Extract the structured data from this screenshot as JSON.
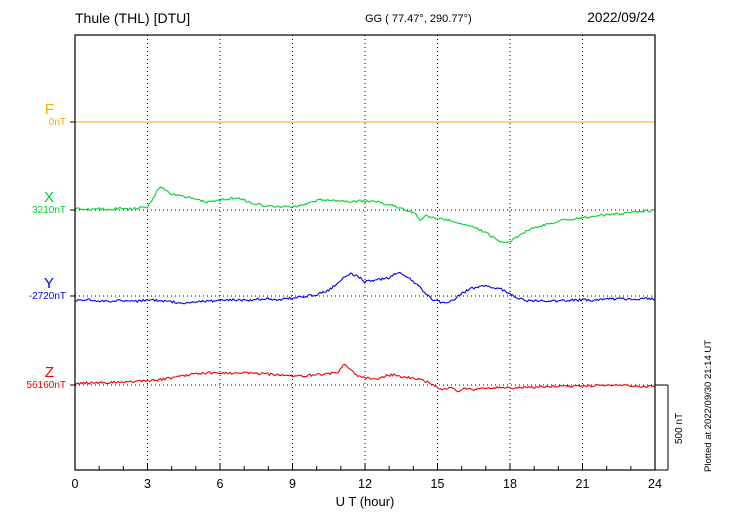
{
  "header": {
    "station_title": "Thule (THL)  [DTU]",
    "coords": "GG ( 77.47°, 290.77°)",
    "date": "2022/09/24"
  },
  "side": {
    "plotted_at": "Plotted at 2022/09/30 21:14 UT",
    "scale_label": "500 nT"
  },
  "chart_data": {
    "type": "line",
    "title": "Thule (THL) [DTU] magnetogram 2022/09/24",
    "xlabel": "U T (hour)",
    "xlim": [
      0,
      24
    ],
    "x_ticks": [
      0,
      3,
      6,
      9,
      12,
      15,
      18,
      21,
      24
    ],
    "grid": "dotted vertical at 3h intervals, dotted horizontal at each component baseline",
    "scale_bar_nT": 500,
    "series": [
      {
        "name": "F",
        "baseline_label": "0nT",
        "baseline_value_nT": 0,
        "color": "#ffa800",
        "points": [
          [
            0,
            0
          ],
          [
            24,
            0
          ]
        ]
      },
      {
        "name": "X",
        "baseline_label": "3210nT",
        "baseline_value_nT": 3210,
        "color": "#00d22d",
        "points": [
          [
            0,
            5
          ],
          [
            0.3,
            8
          ],
          [
            0.6,
            2
          ],
          [
            1,
            6
          ],
          [
            1.4,
            3
          ],
          [
            1.8,
            10
          ],
          [
            2.2,
            6
          ],
          [
            2.6,
            10
          ],
          [
            3,
            18
          ],
          [
            3.2,
            60
          ],
          [
            3.5,
            135
          ],
          [
            3.7,
            120
          ],
          [
            4,
            95
          ],
          [
            4.3,
            85
          ],
          [
            4.7,
            75
          ],
          [
            5,
            60
          ],
          [
            5.4,
            48
          ],
          [
            5.8,
            50
          ],
          [
            6.2,
            62
          ],
          [
            6.6,
            72
          ],
          [
            7,
            58
          ],
          [
            7.4,
            35
          ],
          [
            7.8,
            28
          ],
          [
            8.2,
            24
          ],
          [
            8.6,
            20
          ],
          [
            9,
            16
          ],
          [
            9.4,
            28
          ],
          [
            9.8,
            50
          ],
          [
            10.2,
            58
          ],
          [
            10.6,
            52
          ],
          [
            11,
            55
          ],
          [
            11.4,
            50
          ],
          [
            11.8,
            52
          ],
          [
            12.2,
            48
          ],
          [
            12.6,
            44
          ],
          [
            13,
            32
          ],
          [
            13.4,
            15
          ],
          [
            13.8,
            -5
          ],
          [
            14.1,
            -20
          ],
          [
            14.3,
            -65
          ],
          [
            14.5,
            -35
          ],
          [
            14.8,
            -45
          ],
          [
            15.2,
            -55
          ],
          [
            15.6,
            -65
          ],
          [
            16,
            -85
          ],
          [
            16.4,
            -100
          ],
          [
            16.8,
            -120
          ],
          [
            17.2,
            -150
          ],
          [
            17.6,
            -185
          ],
          [
            17.9,
            -195
          ],
          [
            18.2,
            -165
          ],
          [
            18.6,
            -130
          ],
          [
            19,
            -105
          ],
          [
            19.5,
            -85
          ],
          [
            20,
            -65
          ],
          [
            20.5,
            -55
          ],
          [
            21,
            -45
          ],
          [
            21.5,
            -35
          ],
          [
            22,
            -28
          ],
          [
            22.5,
            -22
          ],
          [
            23,
            -14
          ],
          [
            23.5,
            -8
          ],
          [
            24,
            -2
          ]
        ]
      },
      {
        "name": "Y",
        "baseline_label": "-2720nT",
        "baseline_value_nT": -2720,
        "color": "#0000ee",
        "points": [
          [
            0,
            -28
          ],
          [
            0.5,
            -22
          ],
          [
            1,
            -28
          ],
          [
            1.5,
            -32
          ],
          [
            2,
            -26
          ],
          [
            2.5,
            -32
          ],
          [
            3,
            -24
          ],
          [
            3.5,
            -28
          ],
          [
            4,
            -34
          ],
          [
            4.5,
            -42
          ],
          [
            5,
            -36
          ],
          [
            5.5,
            -30
          ],
          [
            6,
            -26
          ],
          [
            6.5,
            -22
          ],
          [
            7,
            -26
          ],
          [
            7.5,
            -20
          ],
          [
            8,
            -16
          ],
          [
            8.5,
            -22
          ],
          [
            9,
            -12
          ],
          [
            9.5,
            -2
          ],
          [
            10,
            8
          ],
          [
            10.5,
            35
          ],
          [
            10.8,
            70
          ],
          [
            11.1,
            110
          ],
          [
            11.4,
            132
          ],
          [
            11.7,
            118
          ],
          [
            12,
            85
          ],
          [
            12.3,
            92
          ],
          [
            12.6,
            98
          ],
          [
            13,
            108
          ],
          [
            13.3,
            138
          ],
          [
            13.6,
            128
          ],
          [
            13.9,
            95
          ],
          [
            14.2,
            65
          ],
          [
            14.5,
            15
          ],
          [
            14.8,
            -20
          ],
          [
            15.1,
            -35
          ],
          [
            15.4,
            -42
          ],
          [
            15.7,
            -20
          ],
          [
            16,
            15
          ],
          [
            16.4,
            45
          ],
          [
            16.8,
            58
          ],
          [
            17.2,
            52
          ],
          [
            17.6,
            42
          ],
          [
            18,
            12
          ],
          [
            18.4,
            -15
          ],
          [
            18.8,
            -28
          ],
          [
            19.2,
            -32
          ],
          [
            19.6,
            -26
          ],
          [
            20,
            -30
          ],
          [
            20.5,
            -26
          ],
          [
            21,
            -22
          ],
          [
            21.5,
            -26
          ],
          [
            22,
            -20
          ],
          [
            22.5,
            -16
          ],
          [
            23,
            -20
          ],
          [
            23.5,
            -16
          ],
          [
            24,
            -16
          ]
        ]
      },
      {
        "name": "Z",
        "baseline_label": "56160nT",
        "baseline_value_nT": 56160,
        "color": "#ee0000",
        "points": [
          [
            0,
            8
          ],
          [
            0.5,
            12
          ],
          [
            1,
            14
          ],
          [
            1.5,
            15
          ],
          [
            2,
            18
          ],
          [
            2.5,
            20
          ],
          [
            3,
            24
          ],
          [
            3.5,
            30
          ],
          [
            4,
            42
          ],
          [
            4.5,
            56
          ],
          [
            5,
            66
          ],
          [
            5.5,
            72
          ],
          [
            6,
            70
          ],
          [
            6.5,
            68
          ],
          [
            7,
            71
          ],
          [
            7.5,
            68
          ],
          [
            8,
            64
          ],
          [
            8.5,
            58
          ],
          [
            9,
            54
          ],
          [
            9.5,
            55
          ],
          [
            10,
            60
          ],
          [
            10.5,
            66
          ],
          [
            10.9,
            78
          ],
          [
            11.15,
            128
          ],
          [
            11.4,
            95
          ],
          [
            11.7,
            55
          ],
          [
            12,
            42
          ],
          [
            12.5,
            36
          ],
          [
            12.9,
            55
          ],
          [
            13.2,
            60
          ],
          [
            13.5,
            48
          ],
          [
            13.9,
            42
          ],
          [
            14.2,
            36
          ],
          [
            14.5,
            22
          ],
          [
            14.8,
            5
          ],
          [
            15.1,
            -20
          ],
          [
            15.35,
            -30
          ],
          [
            15.55,
            -12
          ],
          [
            15.8,
            -38
          ],
          [
            16.1,
            -22
          ],
          [
            16.5,
            -26
          ],
          [
            17,
            -20
          ],
          [
            17.5,
            -16
          ],
          [
            18,
            -20
          ],
          [
            18.5,
            -16
          ],
          [
            19,
            -12
          ],
          [
            19.5,
            -10
          ],
          [
            20,
            -6
          ],
          [
            20.5,
            -9
          ],
          [
            21,
            -6
          ],
          [
            21.5,
            -4
          ],
          [
            22,
            -1
          ],
          [
            22.5,
            -4
          ],
          [
            23,
            -6
          ],
          [
            23.5,
            -8
          ],
          [
            24,
            -10
          ]
        ]
      }
    ]
  }
}
